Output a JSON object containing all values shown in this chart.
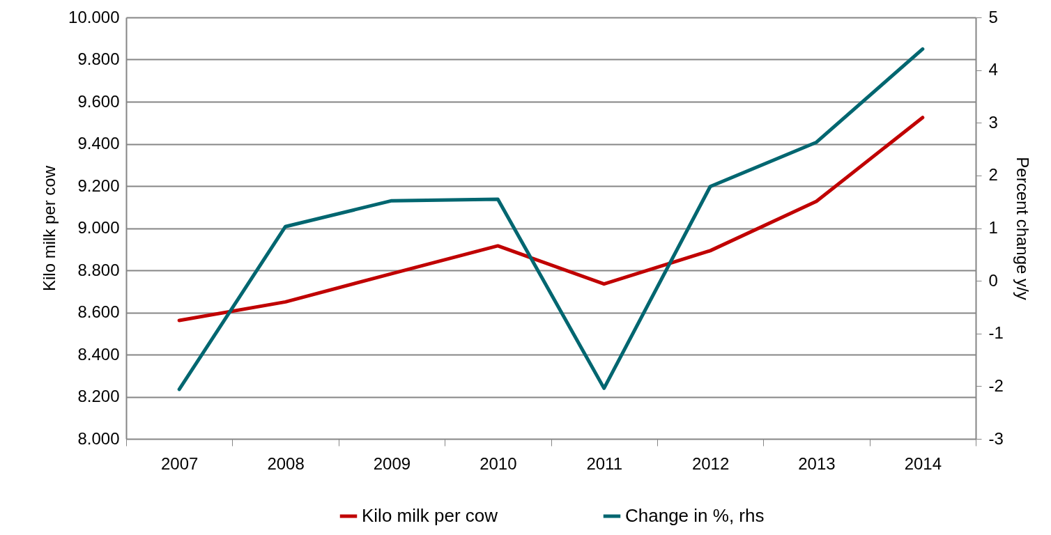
{
  "chart_data": {
    "type": "line",
    "ylabel": "Kilo milk per cow",
    "y2label": "Percent change y/y",
    "categories": [
      "2007",
      "2008",
      "2009",
      "2010",
      "2011",
      "2012",
      "2013",
      "2014"
    ],
    "series": [
      {
        "name": "Kilo milk per cow",
        "color": "#c00000",
        "values": [
          8562,
          8650,
          8784,
          8916,
          8735,
          8893,
          9127,
          9525
        ]
      },
      {
        "name": "Change in %, rhs",
        "color": "#006670",
        "axis": "y2",
        "values": [
          -2.06,
          1.03,
          1.52,
          1.55,
          -2.04,
          1.79,
          2.63,
          4.4
        ]
      }
    ],
    "ylim": [
      8000,
      10000
    ],
    "yticks": [
      {
        "value": 8000,
        "label": "8.000"
      },
      {
        "value": 8200,
        "label": "8.200"
      },
      {
        "value": 8400,
        "label": "8.400"
      },
      {
        "value": 8600,
        "label": "8.600"
      },
      {
        "value": 8800,
        "label": "8.800"
      },
      {
        "value": 9000,
        "label": "9.000"
      },
      {
        "value": 9200,
        "label": "9.200"
      },
      {
        "value": 9400,
        "label": "9.400"
      },
      {
        "value": 9600,
        "label": "9.600"
      },
      {
        "value": 9800,
        "label": "9.800"
      },
      {
        "value": 10000,
        "label": "10.000"
      }
    ],
    "y2lim": [
      -3,
      5
    ],
    "y2ticks": [
      -3,
      -2,
      -1,
      0,
      1,
      2,
      3,
      4,
      5
    ],
    "grid": "y",
    "legend": "bottom",
    "marker": "none",
    "line_style": "solid"
  }
}
